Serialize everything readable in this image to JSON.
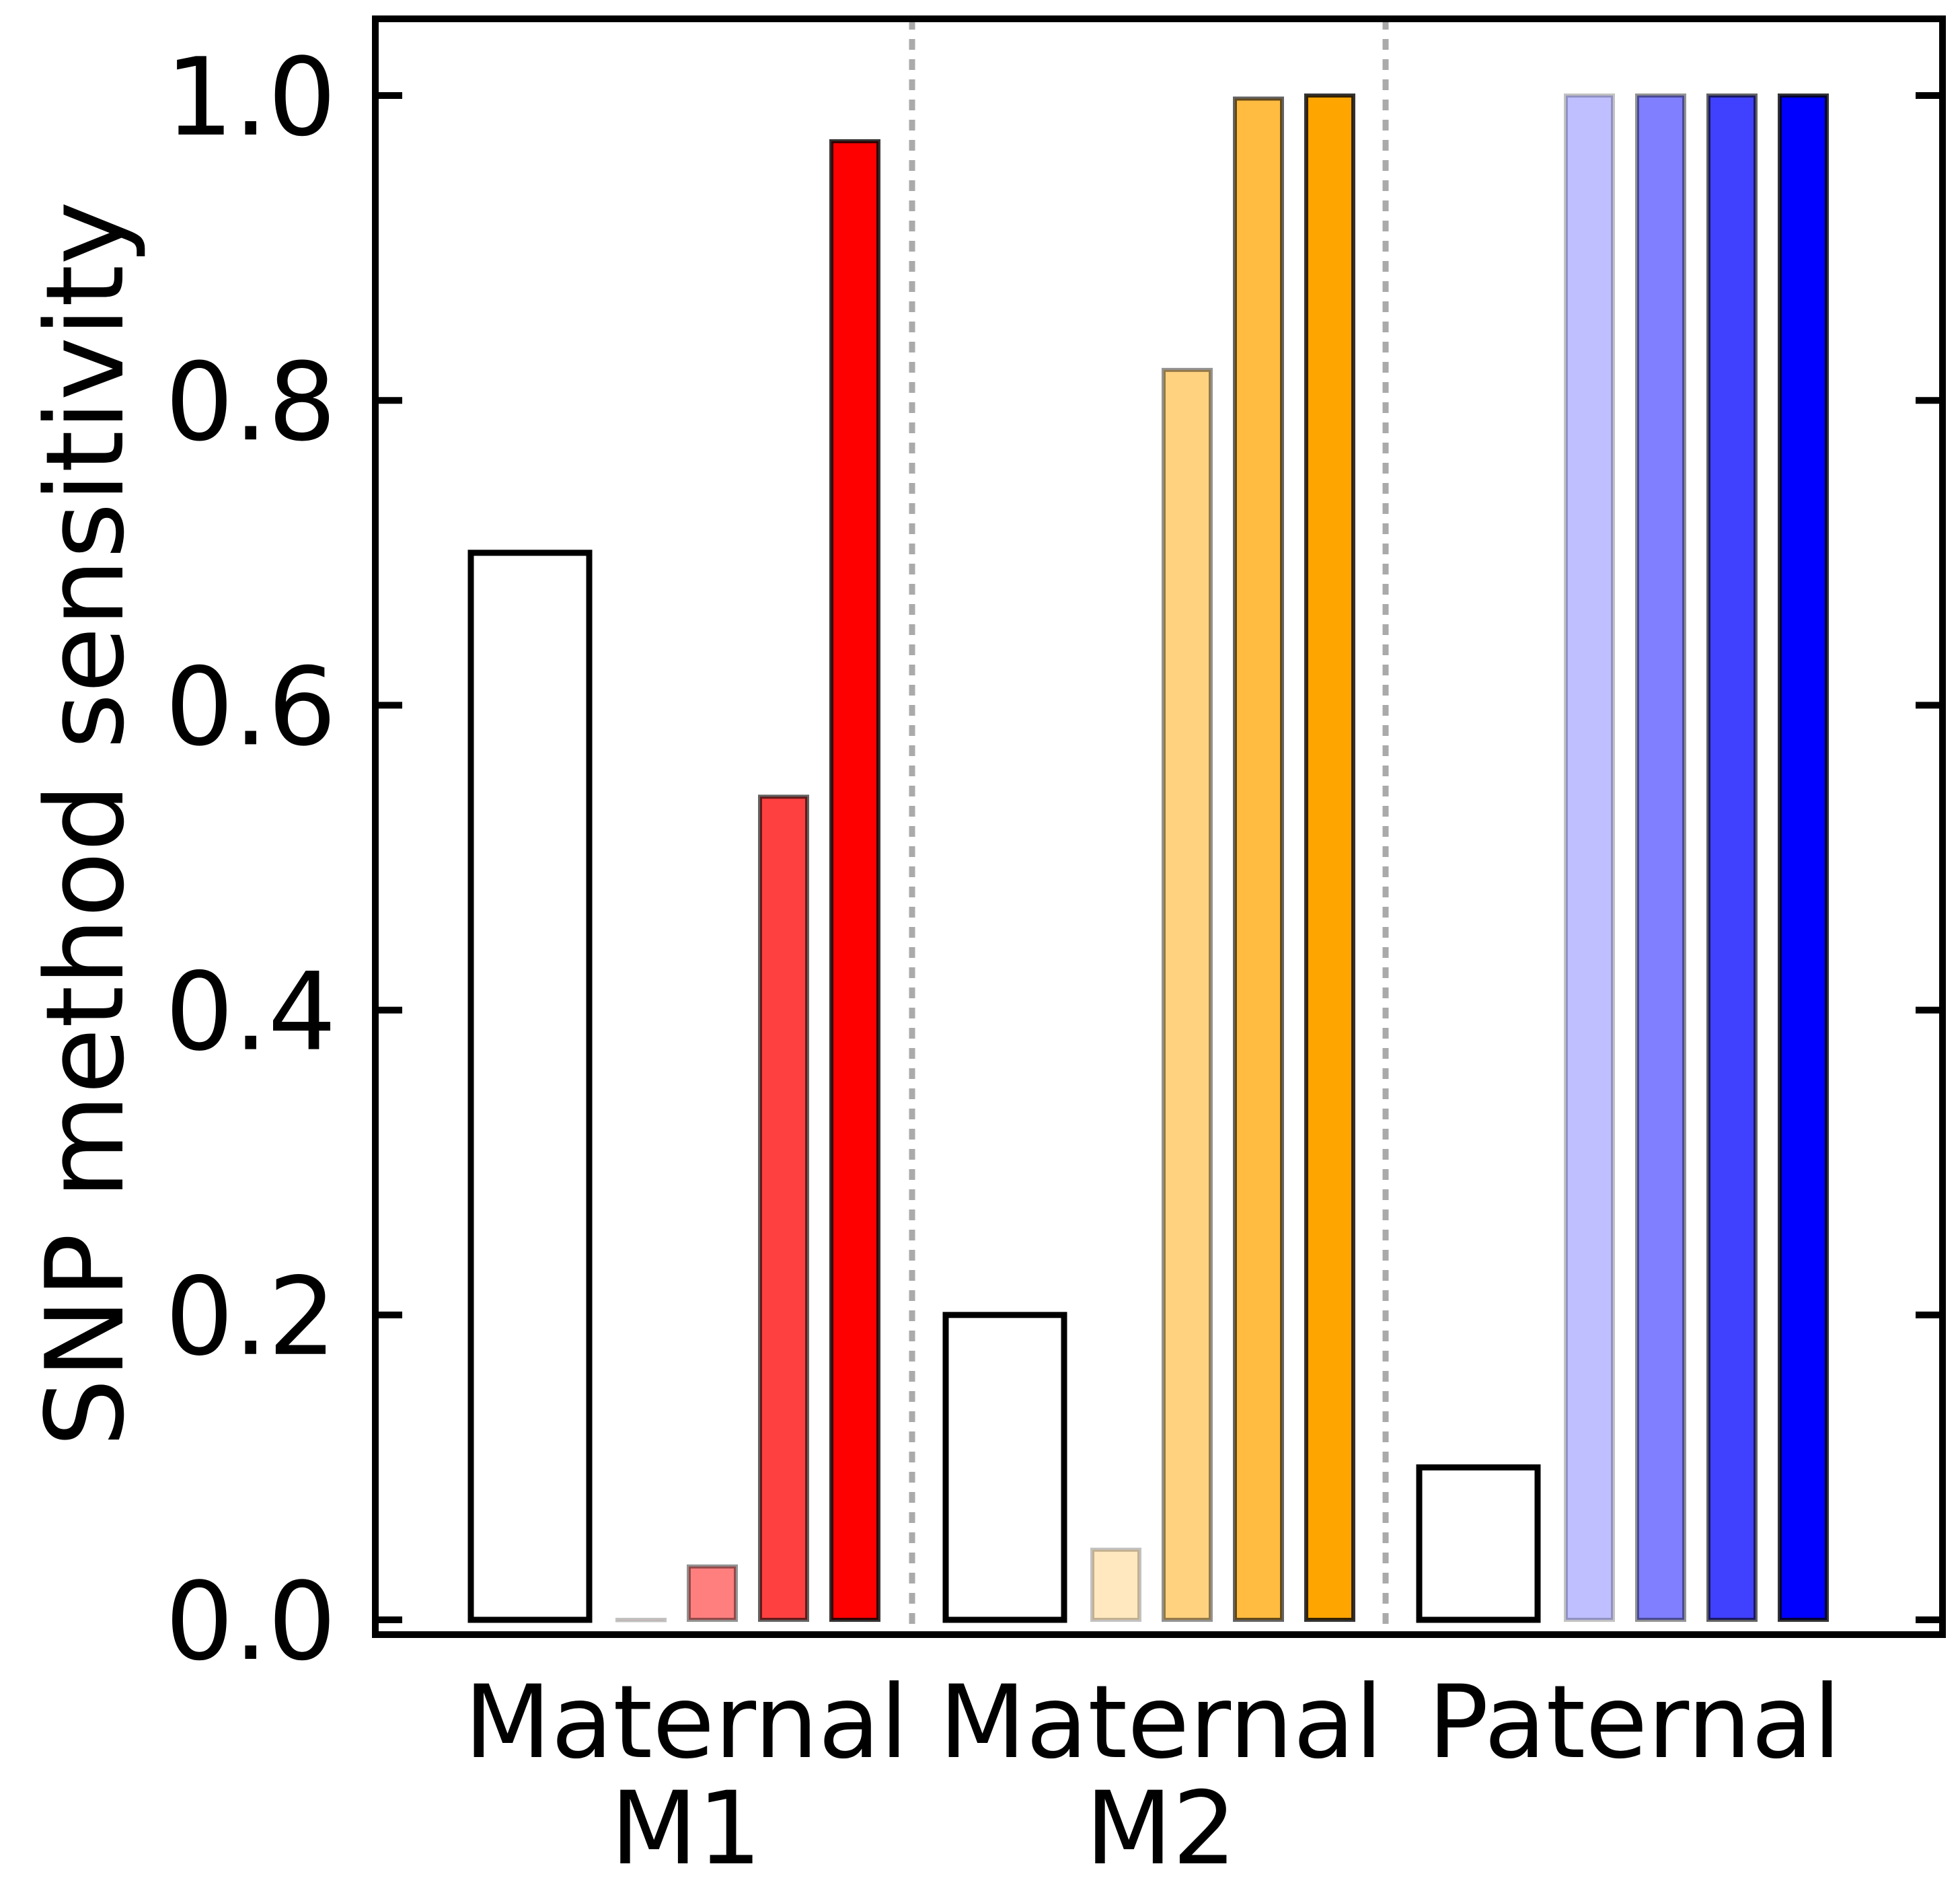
{
  "chart_data": {
    "type": "bar",
    "title": "",
    "xlabel": "",
    "ylabel": "SNP method sensitivity",
    "ylim": [
      0.0,
      1.05
    ],
    "yticks": [
      0.0,
      0.2,
      0.4,
      0.6,
      0.8,
      1.0
    ],
    "ytick_labels": [
      "0.0",
      "0.2",
      "0.4",
      "0.6",
      "0.8",
      "1.0"
    ],
    "grid": false,
    "legend": "none",
    "groups": [
      {
        "label_line1": "Maternal",
        "label_line2": "M1",
        "reference_value": 0.7,
        "values": [
          0.0,
          0.035,
          0.54,
          0.97
        ],
        "color": "#ff0000",
        "alphas": [
          0.25,
          0.5,
          0.75,
          1.0
        ]
      },
      {
        "label_line1": "Maternal",
        "label_line2": "M2",
        "reference_value": 0.2,
        "values": [
          0.046,
          0.82,
          0.998,
          1.0
        ],
        "color": "#ffa500",
        "alphas": [
          0.25,
          0.5,
          0.75,
          1.0
        ]
      },
      {
        "label_line1": "Paternal",
        "label_line2": "",
        "reference_value": 0.1,
        "values": [
          1.0,
          1.0,
          1.0,
          1.0
        ],
        "color": "#0000ff",
        "alphas": [
          0.25,
          0.5,
          0.75,
          1.0
        ]
      }
    ],
    "separator_color": "#aaaaaa"
  }
}
